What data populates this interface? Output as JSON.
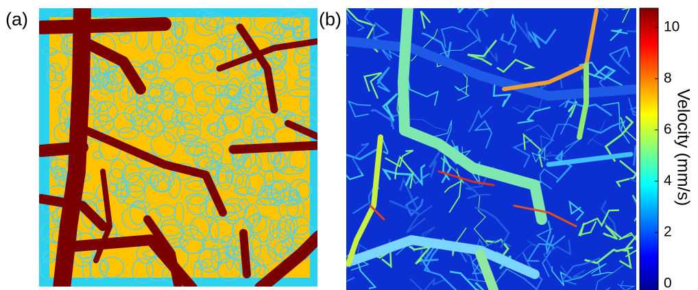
{
  "panels": [
    {
      "label": "(a)"
    },
    {
      "label": "(b)"
    }
  ],
  "colorbar": {
    "label": "Velocity (mm/s)",
    "lim": [
      -0.3,
      10.75
    ],
    "ticks": [
      0,
      2,
      4,
      6,
      8,
      10
    ],
    "colors": [
      "#00008f",
      "#0000ff",
      "#0080ff",
      "#00ffff",
      "#80ff80",
      "#ffff00",
      "#ff8000",
      "#ff0000",
      "#800000"
    ]
  }
}
